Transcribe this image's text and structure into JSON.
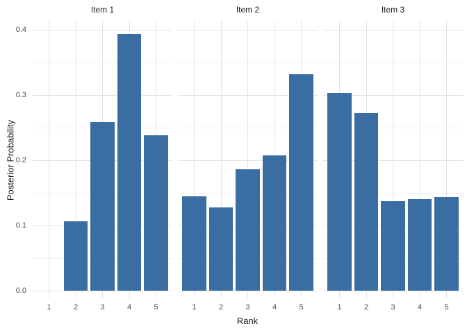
{
  "chart_data": {
    "type": "bar",
    "title": "",
    "xlabel": "Rank",
    "ylabel": "Posterior Probability",
    "categories": [
      "1",
      "2",
      "3",
      "4",
      "5"
    ],
    "yticks": [
      {
        "label": "0.0",
        "value": 0.0
      },
      {
        "label": "0.1",
        "value": 0.1
      },
      {
        "label": "0.2",
        "value": 0.2
      },
      {
        "label": "0.3",
        "value": 0.3
      },
      {
        "label": "0.4",
        "value": 0.4
      }
    ],
    "minor_grid_values": [
      0.05,
      0.15,
      0.25,
      0.35
    ],
    "ylim": [
      0,
      0.42
    ],
    "grid": {
      "major": true,
      "minor": true
    },
    "legend_position": "none",
    "facets": [
      {
        "label": "Item 1",
        "values": [
          0,
          0.107,
          0.259,
          0.394,
          0.239
        ]
      },
      {
        "label": "Item 2",
        "values": [
          0.145,
          0.128,
          0.186,
          0.208,
          0.332
        ]
      },
      {
        "label": "Item 3",
        "values": [
          0.304,
          0.273,
          0.137,
          0.141,
          0.144
        ]
      }
    ]
  },
  "colors": {
    "bar_fill": "#3A6DA1",
    "grid_major": "#E3E3E3",
    "grid_minor": "#EFEFEF",
    "tick_text": "#4D4D4D",
    "title_text": "#1A1A1A",
    "background": "#FFFFFF"
  }
}
